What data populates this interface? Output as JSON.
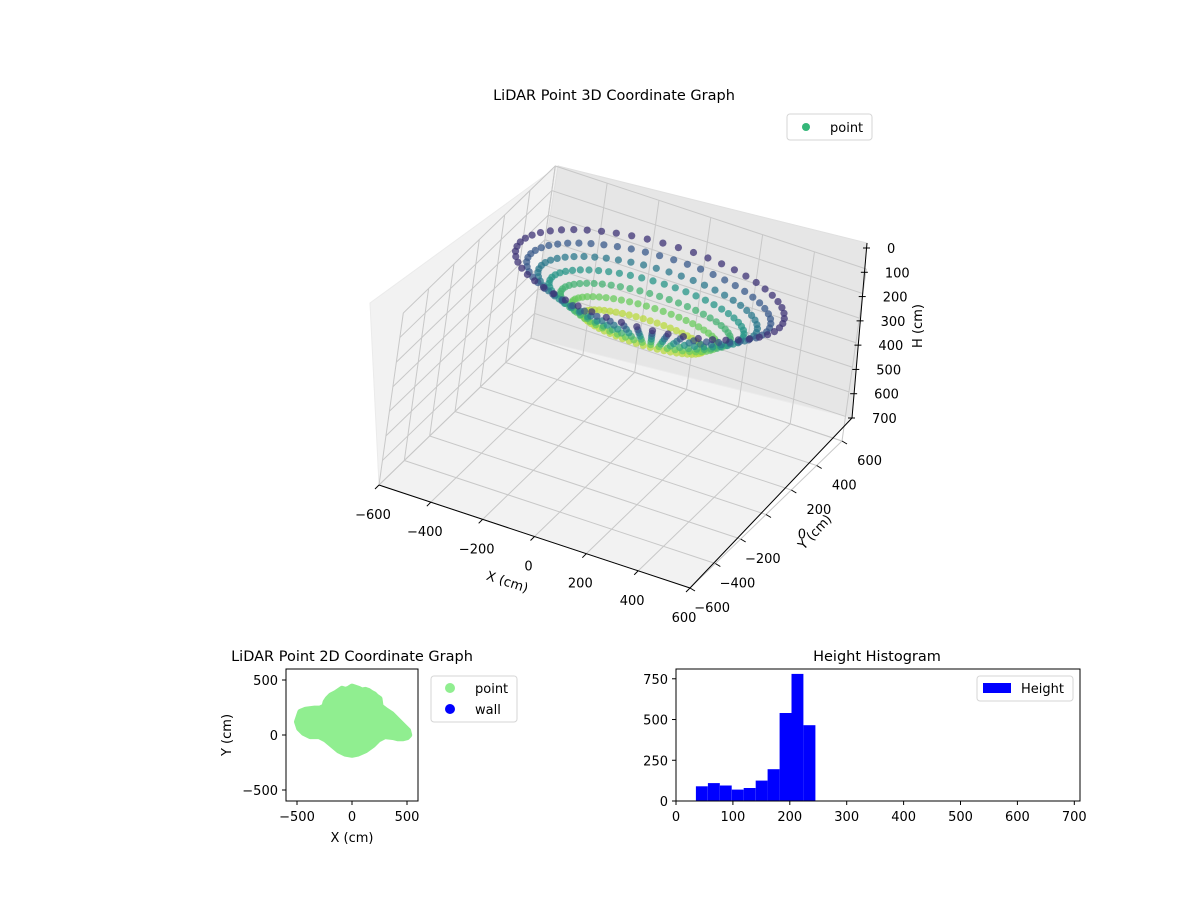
{
  "colors": {
    "point3d_legend": "#35b779",
    "point2d": "#90ee90",
    "wall": "#0000ff",
    "histogram": "#0000ff",
    "viridis": [
      "#440154",
      "#3b528b",
      "#21918c",
      "#5ec962",
      "#fde725"
    ]
  },
  "chart_data": [
    {
      "type": "scatter",
      "projection": "3d",
      "title": "LiDAR Point 3D Coordinate Graph",
      "xlabel": "X (cm)",
      "ylabel": "Y (cm)",
      "zlabel": "H (cm)",
      "xlim": [
        -600,
        600
      ],
      "ylim": [
        -600,
        600
      ],
      "zlim": [
        0,
        700
      ],
      "z_inverted": true,
      "x_ticks": [
        "−600",
        "−400",
        "−200",
        "0",
        "200",
        "400",
        "600"
      ],
      "y_ticks": [
        "−600",
        "−400",
        "−200",
        "0",
        "200",
        "400",
        "600"
      ],
      "z_ticks": [
        "0",
        "100",
        "200",
        "300",
        "400",
        "500",
        "600",
        "700"
      ],
      "legend": {
        "labels": [
          "point"
        ],
        "placement": "top-right"
      },
      "colormap": "viridis",
      "grid": true,
      "point_cloud": {
        "shape": "ring",
        "x_range": [
          -500,
          520
        ],
        "y_range": [
          -180,
          440
        ],
        "h_range": [
          40,
          250
        ]
      }
    },
    {
      "type": "scatter",
      "title": "LiDAR Point 2D Coordinate Graph",
      "xlabel": "X (cm)",
      "ylabel": "Y (cm)",
      "xlim": [
        -600,
        600
      ],
      "ylim": [
        -600,
        600
      ],
      "x_ticks": [
        -500,
        0,
        500
      ],
      "y_ticks": [
        -500,
        0,
        500
      ],
      "legend": {
        "labels": [
          "point",
          "wall"
        ],
        "placement": "outside-right"
      },
      "series": [
        {
          "name": "point",
          "outline": [
            [
              -480,
              180
            ],
            [
              -470,
              210
            ],
            [
              -420,
              230
            ],
            [
              -340,
              240
            ],
            [
              -290,
              240
            ],
            [
              -250,
              260
            ],
            [
              -240,
              300
            ],
            [
              -220,
              330
            ],
            [
              -190,
              360
            ],
            [
              -150,
              380
            ],
            [
              -120,
              400
            ],
            [
              -90,
              420
            ],
            [
              -60,
              410
            ],
            [
              -30,
              420
            ],
            [
              0,
              440
            ],
            [
              30,
              430
            ],
            [
              60,
              420
            ],
            [
              90,
              405
            ],
            [
              120,
              410
            ],
            [
              150,
              400
            ],
            [
              180,
              380
            ],
            [
              200,
              370
            ],
            [
              220,
              350
            ],
            [
              250,
              330
            ],
            [
              260,
              260
            ],
            [
              300,
              230
            ],
            [
              360,
              190
            ],
            [
              420,
              130
            ],
            [
              470,
              80
            ],
            [
              510,
              40
            ],
            [
              520,
              0
            ],
            [
              500,
              -20
            ],
            [
              460,
              -30
            ],
            [
              420,
              -30
            ],
            [
              380,
              -20
            ],
            [
              300,
              -10
            ],
            [
              240,
              -40
            ],
            [
              190,
              -90
            ],
            [
              120,
              -140
            ],
            [
              50,
              -170
            ],
            [
              0,
              -180
            ],
            [
              -60,
              -170
            ],
            [
              -120,
              -140
            ],
            [
              -180,
              -90
            ],
            [
              -240,
              -40
            ],
            [
              -300,
              -10
            ],
            [
              -380,
              -10
            ],
            [
              -440,
              20
            ],
            [
              -480,
              60
            ],
            [
              -500,
              120
            ]
          ]
        },
        {
          "name": "wall",
          "outline": []
        }
      ]
    },
    {
      "type": "bar",
      "title": "Height Histogram",
      "xlabel": "",
      "ylabel": "",
      "xlim": [
        0,
        710
      ],
      "ylim": [
        0,
        810
      ],
      "x_ticks": [
        0,
        100,
        200,
        300,
        400,
        500,
        600,
        700
      ],
      "y_ticks": [
        0,
        250,
        500,
        750
      ],
      "legend": {
        "labels": [
          "Height"
        ],
        "placement": "top-right"
      },
      "bin_edges": [
        35,
        56,
        77,
        98,
        119,
        140,
        161,
        182,
        203,
        224,
        245
      ],
      "values": [
        90,
        110,
        95,
        70,
        80,
        125,
        195,
        540,
        780,
        465
      ]
    }
  ]
}
